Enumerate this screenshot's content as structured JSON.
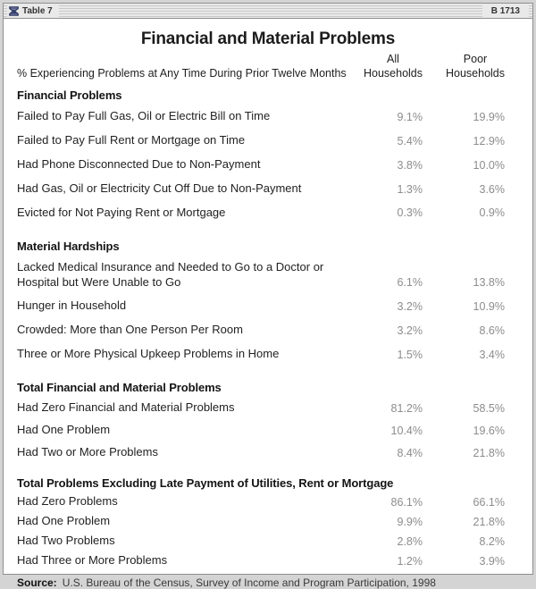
{
  "titlebar": {
    "left_label": "Table 7",
    "right_label": "B 1713",
    "icon": "hourglass-ornament-icon"
  },
  "title": "Financial and Material Problems",
  "colors": {
    "label_text": "#222222",
    "value_text": "#8c8c8c",
    "icon_navy": "#35406d",
    "titlebar_bg": "#e9e9e9"
  },
  "table": {
    "header": {
      "row_label": "% Experiencing Problems at Any Time During Prior Twelve Months",
      "col_all": "All\nHouseholds",
      "col_poor": "Poor\nHouseholds"
    },
    "sections": [
      {
        "heading": "Financial Problems",
        "rows": [
          {
            "label": "Failed to Pay Full Gas, Oil or Electric Bill on Time",
            "all": "9.1%",
            "poor": "19.9%"
          },
          {
            "label": "Failed to Pay Full Rent or Mortgage on Time",
            "all": "5.4%",
            "poor": "12.9%"
          },
          {
            "label": "Had Phone Disconnected Due to Non-Payment",
            "all": "3.8%",
            "poor": "10.0%"
          },
          {
            "label": "Had Gas, Oil or Electricity Cut Off Due to Non-Payment",
            "all": "1.3%",
            "poor": "3.6%"
          },
          {
            "label": "Evicted for Not Paying Rent or Mortgage",
            "all": "0.3%",
            "poor": "0.9%"
          }
        ]
      },
      {
        "heading": "Material Hardships",
        "rows": [
          {
            "label": "Lacked Medical Insurance and Needed to Go to a Doctor or\nHospital but Were Unable to Go",
            "all": "6.1%",
            "poor": "13.8%"
          },
          {
            "label": "Hunger in Household",
            "all": "3.2%",
            "poor": "10.9%"
          },
          {
            "label": "Crowded: More than One Person Per Room",
            "all": "3.2%",
            "poor": "8.6%"
          },
          {
            "label": "Three or More Physical Upkeep Problems in Home",
            "all": "1.5%",
            "poor": "3.4%"
          }
        ]
      },
      {
        "heading": "Total Financial and Material Problems",
        "rows": [
          {
            "label": "Had Zero Financial and Material Problems",
            "all": "81.2%",
            "poor": "58.5%"
          },
          {
            "label": "Had One Problem",
            "all": "10.4%",
            "poor": "19.6%"
          },
          {
            "label": "Had Two or More Problems",
            "all": "8.4%",
            "poor": "21.8%"
          }
        ]
      },
      {
        "heading": "Total Problems Excluding Late Payment of Utilities, Rent or Mortgage",
        "rows": [
          {
            "label": "Had Zero Problems",
            "all": "86.1%",
            "poor": "66.1%"
          },
          {
            "label": "Had One Problem",
            "all": "9.9%",
            "poor": "21.8%"
          },
          {
            "label": "Had Two Problems",
            "all": "2.8%",
            "poor": "8.2%"
          },
          {
            "label": "Had Three or More Problems",
            "all": "1.2%",
            "poor": "3.9%"
          }
        ]
      }
    ]
  },
  "source": {
    "label": "Source:",
    "text": "U.S. Bureau of the Census, Survey of Income and Program Participation, 1998"
  }
}
